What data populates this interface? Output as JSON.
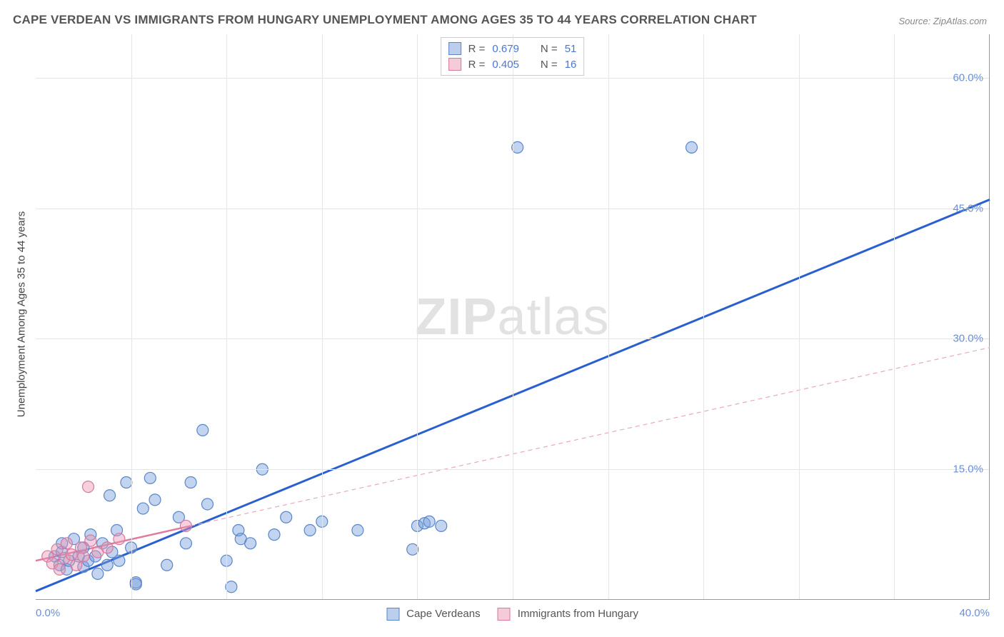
{
  "title": "CAPE VERDEAN VS IMMIGRANTS FROM HUNGARY UNEMPLOYMENT AMONG AGES 35 TO 44 YEARS CORRELATION CHART",
  "source_label": "Source: ZipAtlas.com",
  "ylabel": "Unemployment Among Ages 35 to 44 years",
  "watermark_bold": "ZIP",
  "watermark_light": "atlas",
  "chart": {
    "type": "scatter",
    "xlim": [
      0,
      40
    ],
    "ylim": [
      0,
      65
    ],
    "x_ticks": [
      0,
      40
    ],
    "x_tick_labels": [
      "0.0%",
      "40.0%"
    ],
    "x_minor_grid": [
      4,
      8,
      12,
      16,
      20,
      24,
      28,
      32,
      36
    ],
    "y_ticks": [
      15,
      30,
      45,
      60
    ],
    "y_tick_labels": [
      "15.0%",
      "30.0%",
      "45.0%",
      "60.0%"
    ],
    "background_color": "#ffffff",
    "grid_color": "#e5e5e5",
    "axis_label_color": "#6a8fd8",
    "marker_radius": 8,
    "marker_stroke_width": 1.2,
    "series": [
      {
        "name": "Cape Verdeans",
        "color_fill": "rgba(120,160,220,0.45)",
        "color_stroke": "#5a85c8",
        "points": [
          [
            0.8,
            5.0
          ],
          [
            1.0,
            4.0
          ],
          [
            1.1,
            5.5
          ],
          [
            1.1,
            6.5
          ],
          [
            1.3,
            3.5
          ],
          [
            1.4,
            4.5
          ],
          [
            1.6,
            7.0
          ],
          [
            1.8,
            5.0
          ],
          [
            2.0,
            3.8
          ],
          [
            2.0,
            6.0
          ],
          [
            2.2,
            4.5
          ],
          [
            2.3,
            7.5
          ],
          [
            2.5,
            5.0
          ],
          [
            2.6,
            3.0
          ],
          [
            2.8,
            6.5
          ],
          [
            3.0,
            4.0
          ],
          [
            3.1,
            12.0
          ],
          [
            3.2,
            5.5
          ],
          [
            3.4,
            8.0
          ],
          [
            3.5,
            4.5
          ],
          [
            3.8,
            13.5
          ],
          [
            4.0,
            6.0
          ],
          [
            4.2,
            2.0
          ],
          [
            4.2,
            1.8
          ],
          [
            4.5,
            10.5
          ],
          [
            4.8,
            14.0
          ],
          [
            5.0,
            11.5
          ],
          [
            5.5,
            4.0
          ],
          [
            6.0,
            9.5
          ],
          [
            6.3,
            6.5
          ],
          [
            6.5,
            13.5
          ],
          [
            7.0,
            19.5
          ],
          [
            7.2,
            11.0
          ],
          [
            8.0,
            4.5
          ],
          [
            8.2,
            1.5
          ],
          [
            8.5,
            8.0
          ],
          [
            8.6,
            7.0
          ],
          [
            9.0,
            6.5
          ],
          [
            9.5,
            15.0
          ],
          [
            10.0,
            7.5
          ],
          [
            10.5,
            9.5
          ],
          [
            11.5,
            8.0
          ],
          [
            12.0,
            9.0
          ],
          [
            13.5,
            8.0
          ],
          [
            15.8,
            5.8
          ],
          [
            16.0,
            8.5
          ],
          [
            16.3,
            8.8
          ],
          [
            16.5,
            9.0
          ],
          [
            17.0,
            8.5
          ],
          [
            20.2,
            52.0
          ],
          [
            27.5,
            52.0
          ]
        ]
      },
      {
        "name": "Immigrants from Hungary",
        "color_fill": "rgba(235,150,180,0.45)",
        "color_stroke": "#d878a0",
        "points": [
          [
            0.5,
            5.0
          ],
          [
            0.7,
            4.2
          ],
          [
            0.9,
            5.8
          ],
          [
            1.0,
            3.5
          ],
          [
            1.2,
            4.8
          ],
          [
            1.3,
            6.5
          ],
          [
            1.5,
            5.2
          ],
          [
            1.7,
            4.0
          ],
          [
            1.9,
            6.0
          ],
          [
            2.0,
            5.0
          ],
          [
            2.3,
            6.8
          ],
          [
            2.2,
            13.0
          ],
          [
            2.6,
            5.5
          ],
          [
            3.0,
            6.0
          ],
          [
            3.5,
            7.0
          ],
          [
            6.3,
            8.5
          ]
        ]
      }
    ],
    "regression_lines": [
      {
        "series": "Cape Verdeans",
        "color": "#2a5fd0",
        "width": 3,
        "dash": "none",
        "x1": 0,
        "y1": 1.0,
        "x2": 40,
        "y2": 46.0
      },
      {
        "series": "Immigrants from Hungary (solid)",
        "color": "#e07aa0",
        "width": 2.5,
        "dash": "none",
        "x1": 0,
        "y1": 4.5,
        "x2": 6.5,
        "y2": 8.5
      },
      {
        "series": "Immigrants from Hungary (dashed)",
        "color": "#e8a8c0",
        "width": 1.2,
        "dash": "6,5",
        "x1": 6.5,
        "y1": 8.5,
        "x2": 40,
        "y2": 29.0
      }
    ]
  },
  "legend_top": [
    {
      "color": "blue",
      "r_label": "R = ",
      "r_value": "0.679",
      "n_label": "N = ",
      "n_value": "51"
    },
    {
      "color": "pink",
      "r_label": "R = ",
      "r_value": "0.405",
      "n_label": "N = ",
      "n_value": "16"
    }
  ],
  "legend_bottom": [
    {
      "color": "blue",
      "label": "Cape Verdeans"
    },
    {
      "color": "pink",
      "label": "Immigrants from Hungary"
    }
  ]
}
